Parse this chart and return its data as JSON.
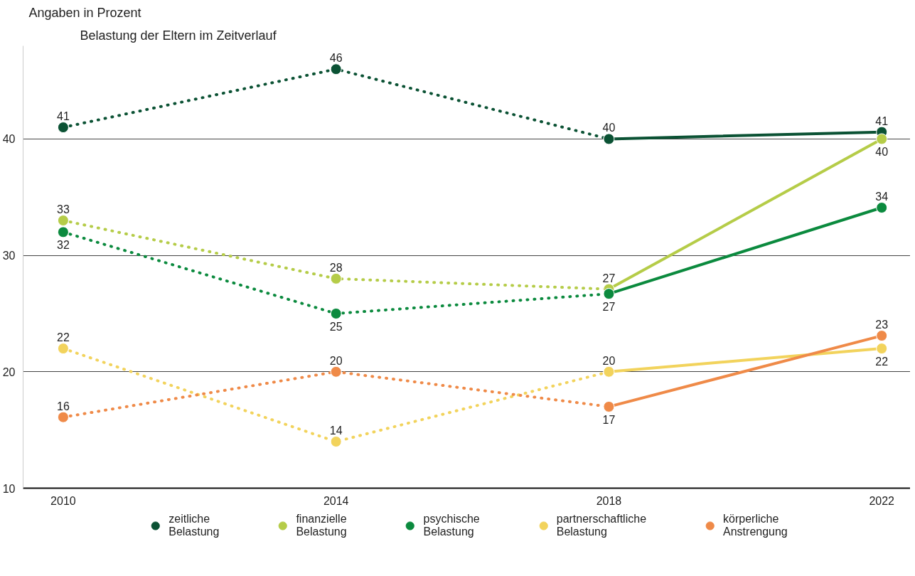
{
  "chart_data": {
    "type": "line",
    "title": "Belastung der Eltern im Zeitverlauf",
    "ylabel": "Angaben in Prozent",
    "categories": [
      "2010",
      "2014",
      "2018",
      "2022"
    ],
    "ylim": [
      10,
      48
    ],
    "yticks": [
      10,
      20,
      30,
      40
    ],
    "grid": "y",
    "legend": "bottom",
    "marker": "circle",
    "series": [
      {
        "color": "#0b5234",
        "line_style": "dotted",
        "values": [
          41,
          46,
          40,
          null
        ],
        "value_labels": [
          "41",
          "46",
          null,
          null
        ]
      },
      {
        "name": "zeitliche Belastung",
        "color": "#0b5234",
        "line_style": "solid",
        "values": [
          null,
          null,
          40,
          40.6
        ],
        "value_labels": [
          null,
          null,
          "40",
          "41"
        ]
      },
      {
        "color": "#b5cc48",
        "line_style": "dotted",
        "values": [
          33,
          28,
          27.1,
          null
        ],
        "value_labels": [
          "33",
          "28",
          null,
          null
        ]
      },
      {
        "name": "finanzielle Belastung",
        "color": "#b5cc48",
        "line_style": "solid",
        "values": [
          null,
          null,
          27.1,
          40
        ],
        "value_labels": [
          null,
          null,
          "27",
          "40"
        ]
      },
      {
        "color": "#0b8a3e",
        "line_style": "dotted",
        "values": [
          32,
          25,
          26.7,
          null
        ],
        "value_labels": [
          "32",
          "25",
          null,
          null
        ]
      },
      {
        "name": "psychische Belastung",
        "color": "#0b8a3e",
        "line_style": "solid",
        "values": [
          null,
          null,
          26.7,
          34.1
        ],
        "value_labels": [
          null,
          null,
          "27",
          "34"
        ]
      },
      {
        "color": "#f2d35c",
        "line_style": "dotted",
        "values": [
          22,
          14,
          20,
          null
        ],
        "value_labels": [
          "22",
          "14",
          null,
          null
        ]
      },
      {
        "name": "partnerschaftliche Belastung",
        "color": "#f2d35c",
        "line_style": "solid",
        "values": [
          null,
          null,
          20,
          22
        ],
        "value_labels": [
          null,
          null,
          "20",
          "22"
        ]
      },
      {
        "color": "#ef8a48",
        "line_style": "dotted",
        "values": [
          16.1,
          20,
          17,
          null
        ],
        "value_labels": [
          "16",
          "20",
          null,
          null
        ]
      },
      {
        "name": "körperliche Anstrengung",
        "color": "#ef8a48",
        "line_style": "solid",
        "values": [
          null,
          null,
          17,
          23.1
        ],
        "value_labels": [
          null,
          null,
          "17",
          "23"
        ]
      }
    ]
  }
}
